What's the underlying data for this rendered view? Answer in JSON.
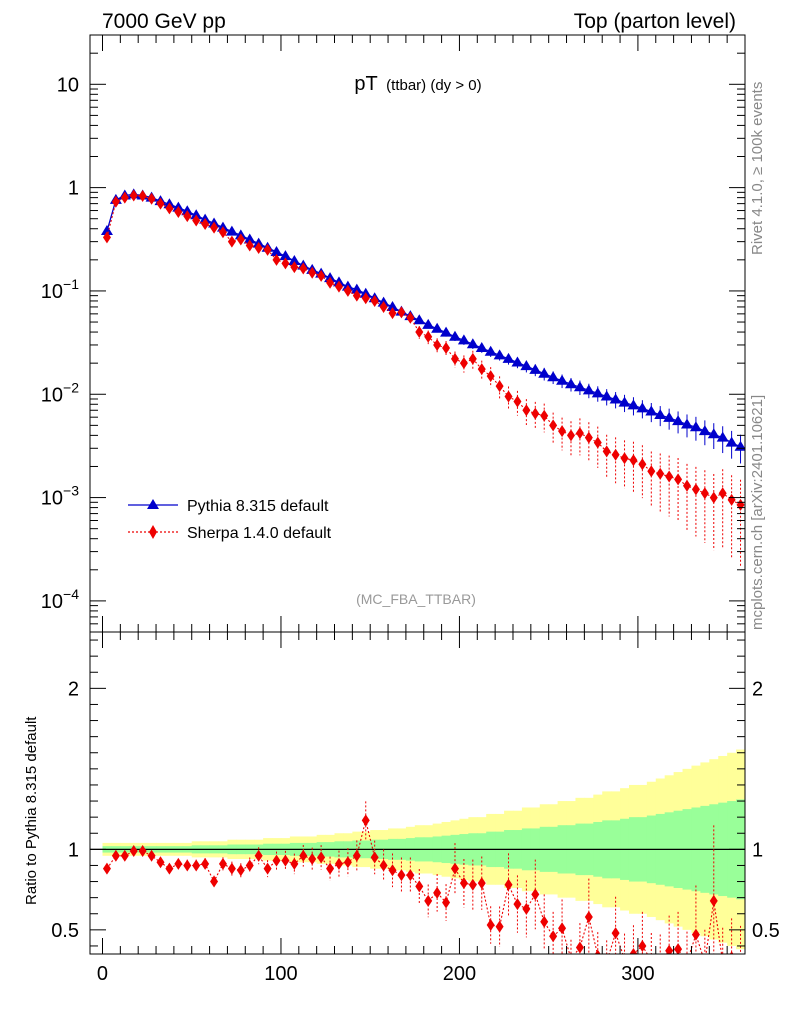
{
  "header": {
    "left": "7000 GeV pp",
    "right": "Top (parton level)"
  },
  "side": {
    "rivet": "Rivet 4.1.0, ≥ 100k events",
    "mcplots": "mcplots.cern.ch [arXiv:2401.10621]"
  },
  "colors": {
    "pythia": "#0000cc",
    "sherpa": "#ee0000",
    "band_inner": "#99ff99",
    "band_outer": "#ffff99"
  },
  "chart_data": [
    {
      "type": "scatter",
      "title": "pT",
      "subtitle": "(ttbar) (dy > 0)",
      "analysis": "(MC_FBA_TTBAR)",
      "xlabel": "",
      "ylabel": "",
      "yscale": "log",
      "xlim": [
        -7,
        360
      ],
      "ylim": [
        5e-05,
        30
      ],
      "yticks": [
        10,
        1,
        0.1,
        0.01,
        0.001,
        0.0001
      ],
      "ytick_labels": [
        {
          "base": "10",
          "exp": ""
        },
        {
          "base": "1",
          "exp": ""
        },
        {
          "base": "10",
          "exp": "−1"
        },
        {
          "base": "10",
          "exp": "−2"
        },
        {
          "base": "10",
          "exp": "−3"
        },
        {
          "base": "10",
          "exp": "−4"
        }
      ],
      "legend_position": "bottom-left",
      "series": [
        {
          "name": "Pythia 8.315 default",
          "marker": "triangle",
          "line": "solid",
          "bin_width": 5,
          "x_start": 2.5,
          "values": [
            0.38,
            0.76,
            0.84,
            0.86,
            0.84,
            0.8,
            0.74,
            0.69,
            0.64,
            0.59,
            0.54,
            0.49,
            0.45,
            0.41,
            0.375,
            0.345,
            0.315,
            0.287,
            0.262,
            0.238,
            0.217,
            0.195,
            0.176,
            0.16,
            0.147,
            0.133,
            0.121,
            0.11,
            0.103,
            0.094,
            0.085,
            0.077,
            0.07,
            0.063,
            0.057,
            0.052,
            0.047,
            0.043,
            0.0395,
            0.036,
            0.0332,
            0.0305,
            0.028,
            0.0258,
            0.0238,
            0.022,
            0.0203,
            0.0187,
            0.0172,
            0.0158,
            0.0146,
            0.0135,
            0.0125,
            0.0117,
            0.0109,
            0.0102,
            0.0095,
            0.0089,
            0.0083,
            0.0078,
            0.0073,
            0.0068,
            0.0063,
            0.0059,
            0.0055,
            0.0051,
            0.0048,
            0.0044,
            0.0041,
            0.0038,
            0.0034,
            0.0031
          ],
          "rel_errors": [
            0.02,
            0.02,
            0.02,
            0.02,
            0.02,
            0.02,
            0.02,
            0.02,
            0.02,
            0.02,
            0.025,
            0.025,
            0.025,
            0.025,
            0.03,
            0.03,
            0.03,
            0.03,
            0.035,
            0.035,
            0.035,
            0.04,
            0.04,
            0.04,
            0.045,
            0.045,
            0.05,
            0.05,
            0.055,
            0.055,
            0.06,
            0.06,
            0.065,
            0.065,
            0.07,
            0.075,
            0.075,
            0.08,
            0.085,
            0.09,
            0.095,
            0.1,
            0.1,
            0.11,
            0.11,
            0.12,
            0.12,
            0.13,
            0.13,
            0.14,
            0.14,
            0.15,
            0.15,
            0.16,
            0.16,
            0.17,
            0.18,
            0.18,
            0.19,
            0.2,
            0.2,
            0.21,
            0.22,
            0.23,
            0.24,
            0.25,
            0.26,
            0.27,
            0.28,
            0.29,
            0.3,
            0.31
          ]
        },
        {
          "name": "Sherpa 1.4.0 default",
          "marker": "diamond",
          "line": "dotted",
          "bin_width": 5,
          "x_start": 2.5,
          "values": [
            0.33,
            0.73,
            0.8,
            0.84,
            0.83,
            0.78,
            0.7,
            0.63,
            0.58,
            0.53,
            0.48,
            0.445,
            0.41,
            0.37,
            0.3,
            0.315,
            0.275,
            0.26,
            0.25,
            0.2,
            0.185,
            0.17,
            0.165,
            0.15,
            0.14,
            0.12,
            0.11,
            0.1,
            0.09,
            0.085,
            0.08,
            0.07,
            0.061,
            0.062,
            0.055,
            0.04,
            0.036,
            0.03,
            0.028,
            0.022,
            0.02,
            0.022,
            0.0175,
            0.015,
            0.012,
            0.0095,
            0.0085,
            0.007,
            0.0065,
            0.0062,
            0.005,
            0.0044,
            0.004,
            0.0042,
            0.0038,
            0.0034,
            0.0028,
            0.0026,
            0.0024,
            0.0023,
            0.0021,
            0.0018,
            0.0017,
            0.0016,
            0.0015,
            0.0013,
            0.0012,
            0.0011,
            0.001,
            0.0011,
            0.00095,
            0.00085
          ],
          "rel_errors": [
            0.03,
            0.03,
            0.03,
            0.03,
            0.03,
            0.03,
            0.035,
            0.035,
            0.035,
            0.04,
            0.04,
            0.04,
            0.045,
            0.045,
            0.05,
            0.05,
            0.055,
            0.055,
            0.06,
            0.06,
            0.065,
            0.07,
            0.07,
            0.075,
            0.08,
            0.085,
            0.09,
            0.095,
            0.1,
            0.1,
            0.11,
            0.11,
            0.12,
            0.13,
            0.13,
            0.14,
            0.15,
            0.16,
            0.17,
            0.18,
            0.19,
            0.2,
            0.21,
            0.22,
            0.24,
            0.25,
            0.27,
            0.28,
            0.3,
            0.31,
            0.33,
            0.35,
            0.37,
            0.39,
            0.41,
            0.43,
            0.45,
            0.47,
            0.49,
            0.51,
            0.53,
            0.55,
            0.57,
            0.59,
            0.61,
            0.63,
            0.65,
            0.67,
            0.69,
            0.71,
            0.73,
            0.75
          ]
        }
      ]
    },
    {
      "type": "scatter",
      "title": "",
      "xlabel": "",
      "ylabel": "Ratio to Pythia 8.315 default",
      "xlim": [
        -7,
        360
      ],
      "ylim": [
        0.35,
        2.35
      ],
      "xticks": [
        0,
        100,
        200,
        300
      ],
      "yticks": [
        0.5,
        1,
        2
      ],
      "reference_line": 1,
      "bands": {
        "inner_rel_errors": "pythia rel_errors",
        "outer_factor": 2
      },
      "series": [
        {
          "name": "Sherpa 1.4.0 default / Pythia 8.315 default",
          "marker": "diamond",
          "line": "dotted",
          "x_start": 2.5,
          "bin_width": 5,
          "values": [
            0.88,
            0.96,
            0.96,
            0.99,
            0.99,
            0.96,
            0.92,
            0.88,
            0.91,
            0.9,
            0.9,
            0.91,
            0.8,
            0.91,
            0.88,
            0.87,
            0.9,
            0.96,
            0.88,
            0.93,
            0.93,
            0.91,
            0.96,
            0.94,
            0.95,
            0.88,
            0.91,
            0.92,
            0.96,
            1.18,
            0.95,
            0.9,
            0.87,
            0.84,
            0.84,
            0.77,
            0.68,
            0.73,
            0.67,
            0.88,
            0.79,
            0.78,
            0.79,
            0.53,
            0.52,
            0.78,
            0.66,
            0.63,
            0.72,
            0.55,
            0.46,
            0.51,
            0.32,
            0.39,
            0.58,
            0.34,
            0.3,
            0.48,
            0.32,
            0.35,
            0.4,
            0.31,
            0.3,
            0.37,
            0.38,
            0.3,
            0.47,
            0.3,
            0.68,
            0.3,
            0.33,
            0.3
          ]
        }
      ]
    }
  ]
}
